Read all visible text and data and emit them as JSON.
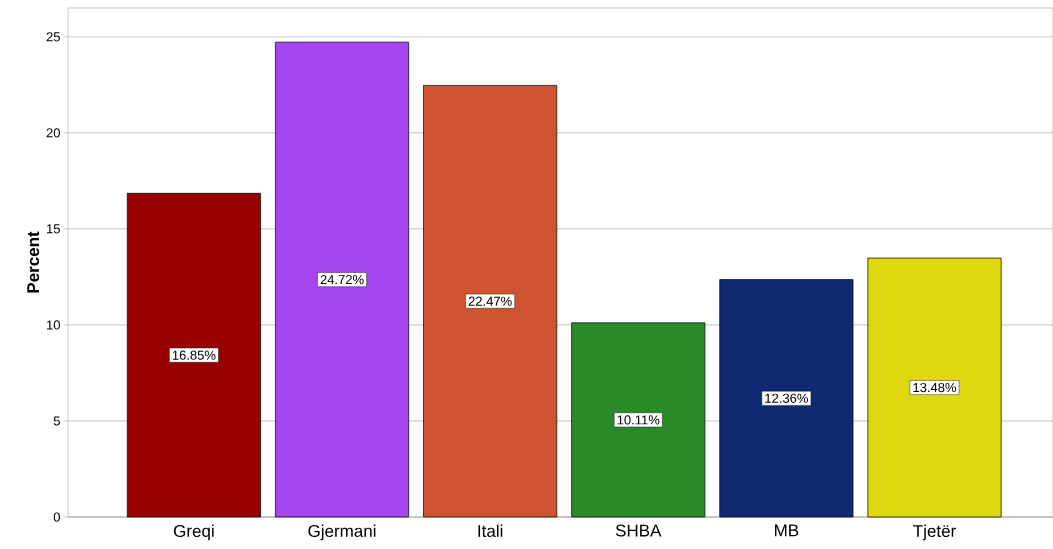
{
  "chart_data": {
    "type": "bar",
    "ylabel": "Percent",
    "categories": [
      "Greqi",
      "Gjermani",
      "Itali",
      "SHBA",
      "MB",
      "Tjetër"
    ],
    "values": [
      16.85,
      24.72,
      22.47,
      10.11,
      12.36,
      13.48
    ],
    "value_labels": [
      "16.85%",
      "24.72%",
      "22.47%",
      "10.11%",
      "12.36%",
      "13.48%"
    ],
    "colors": [
      "#990000",
      "#a545f0",
      "#d05330",
      "#2a8a2a",
      "#0e2a73",
      "#e0d80e"
    ],
    "ylim": [
      0,
      26.5
    ],
    "yticks": [
      0,
      5,
      10,
      15,
      20,
      25
    ],
    "grid": "y"
  }
}
